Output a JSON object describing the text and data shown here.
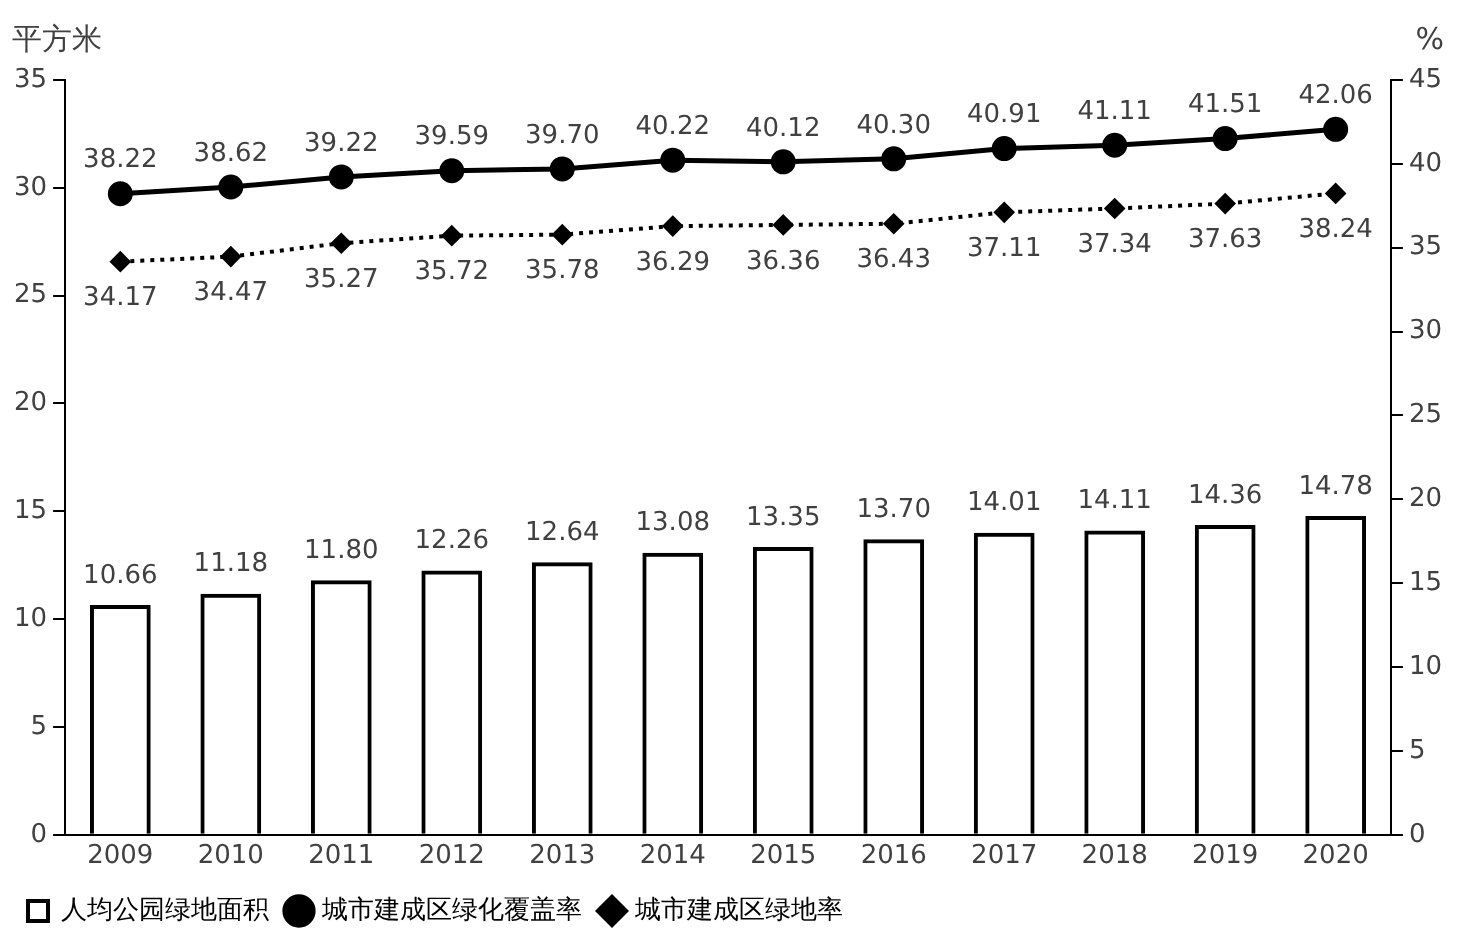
{
  "chart_data": {
    "type": "bar",
    "ylabel": "平方米",
    "y2label": "%",
    "categories": [
      "2009",
      "2010",
      "2011",
      "2012",
      "2013",
      "2014",
      "2015",
      "2016",
      "2017",
      "2018",
      "2019",
      "2020"
    ],
    "series": [
      {
        "name": "人均公园绿地面积",
        "color": "#000000",
        "values": [
          10.66,
          11.18,
          11.8,
          12.26,
          12.64,
          13.08,
          13.35,
          13.7,
          14.01,
          14.11,
          14.36,
          14.78
        ],
        "value_labels": [
          "10.66",
          "11.18",
          "11.80",
          "12.26",
          "12.64",
          "13.08",
          "13.35",
          "13.70",
          "14.01",
          "14.11",
          "14.36",
          "14.78"
        ]
      },
      {
        "name": "城市建成区绿化覆盖率",
        "type": "line",
        "axis": "y2",
        "color": "#000000",
        "marker": "circle",
        "line_style": "solid",
        "values": [
          38.22,
          38.62,
          39.22,
          39.59,
          39.7,
          40.22,
          40.12,
          40.3,
          40.91,
          41.11,
          41.51,
          42.06
        ],
        "value_labels": [
          "38.22",
          "38.62",
          "39.22",
          "39.59",
          "39.70",
          "40.22",
          "40.12",
          "40.30",
          "40.91",
          "41.11",
          "41.51",
          "42.06"
        ]
      },
      {
        "name": "城市建成区绿地率",
        "type": "line",
        "axis": "y2",
        "color": "#000000",
        "marker": "diamond",
        "line_style": "dotted",
        "values": [
          34.17,
          34.47,
          35.27,
          35.72,
          35.78,
          36.29,
          36.36,
          36.43,
          37.11,
          37.34,
          37.63,
          38.24
        ],
        "value_labels": [
          "34.17",
          "34.47",
          "35.27",
          "35.72",
          "35.78",
          "36.29",
          "36.36",
          "36.43",
          "37.11",
          "37.34",
          "37.63",
          "38.24"
        ]
      }
    ],
    "ylim": [
      0,
      35
    ],
    "yticks": [
      0,
      5,
      10,
      15,
      20,
      25,
      30,
      35
    ],
    "y2lim": [
      0,
      45
    ],
    "y2ticks": [
      0,
      5,
      10,
      15,
      20,
      25,
      30,
      35,
      40,
      45
    ],
    "legend": "bottom",
    "grid": false
  }
}
